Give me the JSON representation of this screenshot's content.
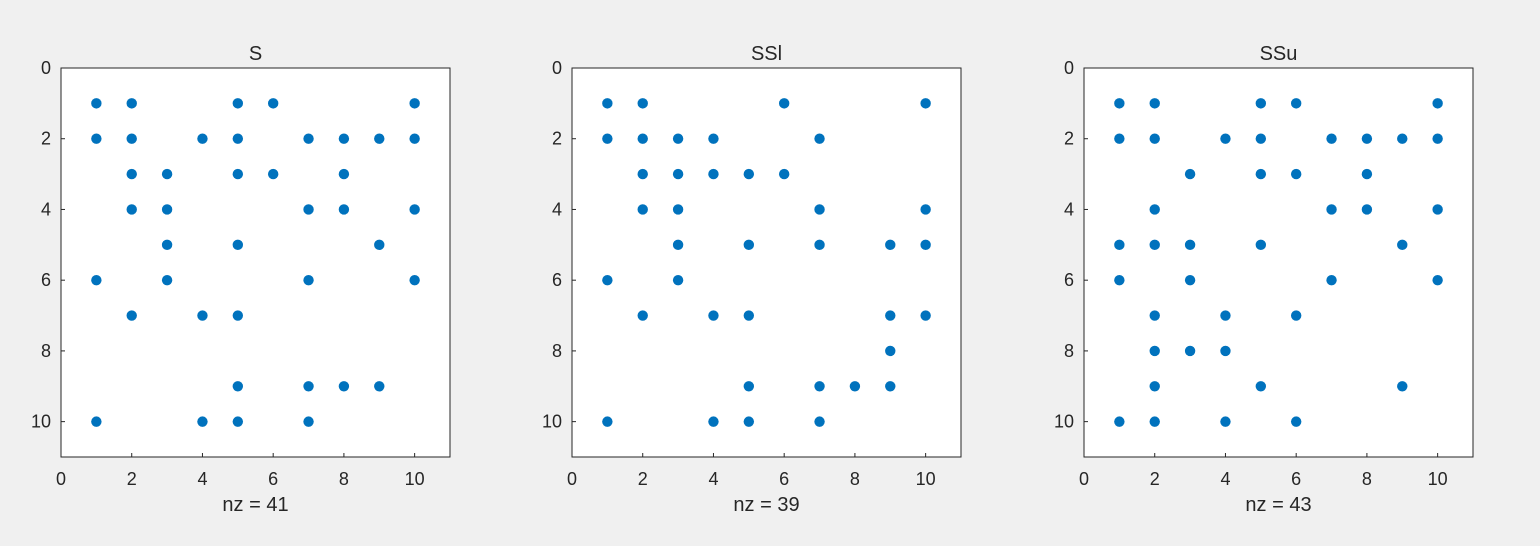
{
  "colors": {
    "marker": "#0072BD",
    "figure_bg": "#f0f0f0",
    "axes_bg": "#ffffff",
    "axis": "#262626"
  },
  "chart_data": [
    {
      "type": "scatter",
      "title": "S",
      "xlabel": "nz = 41",
      "xlim": [
        0,
        11
      ],
      "ylim": [
        0,
        11
      ],
      "y_reversed": true,
      "xticks": [
        0,
        2,
        4,
        6,
        8,
        10
      ],
      "yticks": [
        0,
        2,
        4,
        6,
        8,
        10
      ],
      "points": [
        [
          1,
          1
        ],
        [
          2,
          1
        ],
        [
          5,
          1
        ],
        [
          6,
          1
        ],
        [
          10,
          1
        ],
        [
          1,
          2
        ],
        [
          2,
          2
        ],
        [
          4,
          2
        ],
        [
          5,
          2
        ],
        [
          7,
          2
        ],
        [
          8,
          2
        ],
        [
          9,
          2
        ],
        [
          10,
          2
        ],
        [
          2,
          3
        ],
        [
          3,
          3
        ],
        [
          5,
          3
        ],
        [
          6,
          3
        ],
        [
          8,
          3
        ],
        [
          2,
          4
        ],
        [
          3,
          4
        ],
        [
          7,
          4
        ],
        [
          8,
          4
        ],
        [
          10,
          4
        ],
        [
          3,
          5
        ],
        [
          5,
          5
        ],
        [
          9,
          5
        ],
        [
          1,
          6
        ],
        [
          3,
          6
        ],
        [
          7,
          6
        ],
        [
          10,
          6
        ],
        [
          2,
          7
        ],
        [
          4,
          7
        ],
        [
          5,
          7
        ],
        [
          5,
          9
        ],
        [
          7,
          9
        ],
        [
          8,
          9
        ],
        [
          9,
          9
        ],
        [
          1,
          10
        ],
        [
          4,
          10
        ],
        [
          5,
          10
        ],
        [
          7,
          10
        ]
      ]
    },
    {
      "type": "scatter",
      "title": "SSl",
      "xlabel": "nz = 39",
      "xlim": [
        0,
        11
      ],
      "ylim": [
        0,
        11
      ],
      "y_reversed": true,
      "xticks": [
        0,
        2,
        4,
        6,
        8,
        10
      ],
      "yticks": [
        0,
        2,
        4,
        6,
        8,
        10
      ],
      "points": [
        [
          1,
          1
        ],
        [
          2,
          1
        ],
        [
          6,
          1
        ],
        [
          10,
          1
        ],
        [
          1,
          2
        ],
        [
          2,
          2
        ],
        [
          3,
          2
        ],
        [
          4,
          2
        ],
        [
          7,
          2
        ],
        [
          2,
          3
        ],
        [
          3,
          3
        ],
        [
          4,
          3
        ],
        [
          5,
          3
        ],
        [
          6,
          3
        ],
        [
          2,
          4
        ],
        [
          3,
          4
        ],
        [
          7,
          4
        ],
        [
          10,
          4
        ],
        [
          3,
          5
        ],
        [
          5,
          5
        ],
        [
          7,
          5
        ],
        [
          9,
          5
        ],
        [
          10,
          5
        ],
        [
          1,
          6
        ],
        [
          3,
          6
        ],
        [
          2,
          7
        ],
        [
          4,
          7
        ],
        [
          5,
          7
        ],
        [
          9,
          7
        ],
        [
          10,
          7
        ],
        [
          9,
          8
        ],
        [
          5,
          9
        ],
        [
          7,
          9
        ],
        [
          8,
          9
        ],
        [
          9,
          9
        ],
        [
          1,
          10
        ],
        [
          4,
          10
        ],
        [
          5,
          10
        ],
        [
          7,
          10
        ]
      ]
    },
    {
      "type": "scatter",
      "title": "SSu",
      "xlabel": "nz = 43",
      "xlim": [
        0,
        11
      ],
      "ylim": [
        0,
        11
      ],
      "y_reversed": true,
      "xticks": [
        0,
        2,
        4,
        6,
        8,
        10
      ],
      "yticks": [
        0,
        2,
        4,
        6,
        8,
        10
      ],
      "points": [
        [
          1,
          1
        ],
        [
          2,
          1
        ],
        [
          5,
          1
        ],
        [
          6,
          1
        ],
        [
          10,
          1
        ],
        [
          1,
          2
        ],
        [
          2,
          2
        ],
        [
          4,
          2
        ],
        [
          5,
          2
        ],
        [
          7,
          2
        ],
        [
          8,
          2
        ],
        [
          9,
          2
        ],
        [
          10,
          2
        ],
        [
          3,
          3
        ],
        [
          5,
          3
        ],
        [
          6,
          3
        ],
        [
          8,
          3
        ],
        [
          2,
          4
        ],
        [
          7,
          4
        ],
        [
          8,
          4
        ],
        [
          10,
          4
        ],
        [
          1,
          5
        ],
        [
          2,
          5
        ],
        [
          3,
          5
        ],
        [
          5,
          5
        ],
        [
          9,
          5
        ],
        [
          1,
          6
        ],
        [
          3,
          6
        ],
        [
          7,
          6
        ],
        [
          10,
          6
        ],
        [
          2,
          7
        ],
        [
          4,
          7
        ],
        [
          6,
          7
        ],
        [
          2,
          8
        ],
        [
          3,
          8
        ],
        [
          4,
          8
        ],
        [
          2,
          9
        ],
        [
          5,
          9
        ],
        [
          9,
          9
        ],
        [
          1,
          10
        ],
        [
          2,
          10
        ],
        [
          4,
          10
        ],
        [
          6,
          10
        ]
      ]
    }
  ]
}
